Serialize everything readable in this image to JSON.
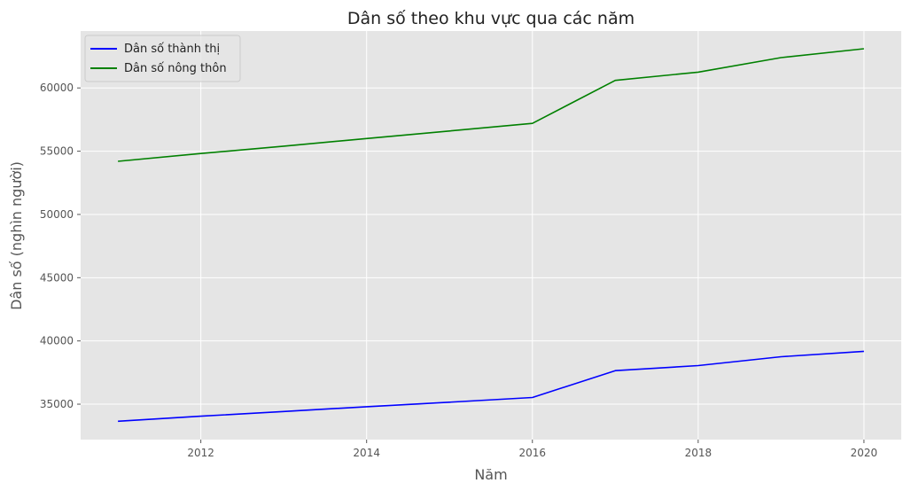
{
  "chart_data": {
    "type": "line",
    "title": "Dân số theo khu vực qua các năm",
    "xlabel": "Năm",
    "ylabel": "Dân số (nghìn người)",
    "x": [
      2011,
      2012,
      2013,
      2014,
      2015,
      2016,
      2017,
      2018,
      2019,
      2020
    ],
    "xlim": [
      2010.55,
      2020.45
    ],
    "ylim": [
      32200,
      64500
    ],
    "xticks": [
      2012,
      2014,
      2016,
      2018,
      2020
    ],
    "yticks": [
      35000,
      40000,
      45000,
      50000,
      55000,
      60000
    ],
    "grid": true,
    "legend_position": "top-left",
    "series": [
      {
        "name": "Dân số thành thị",
        "color": "#0000ff",
        "values": [
          33650,
          34050,
          34420,
          34800,
          35160,
          35530,
          37650,
          38050,
          38750,
          39180
        ]
      },
      {
        "name": "Dân số nông thôn",
        "color": "#008000",
        "values": [
          54200,
          54820,
          55400,
          56000,
          56600,
          57200,
          60600,
          61250,
          62400,
          63100
        ]
      }
    ]
  }
}
